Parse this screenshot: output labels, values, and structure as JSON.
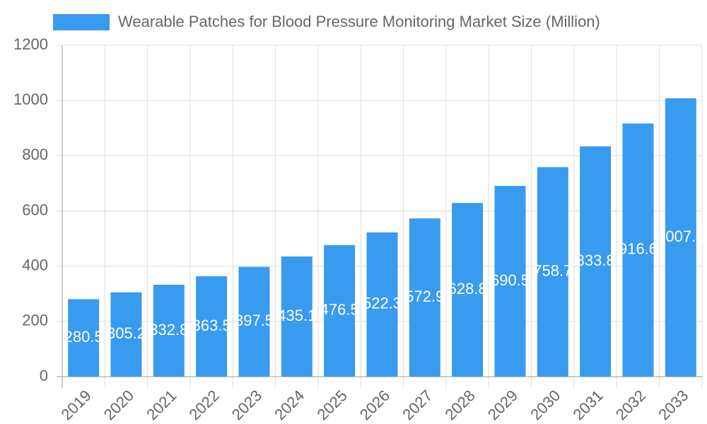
{
  "chart_data": {
    "type": "bar",
    "legend": "Wearable Patches for Blood Pressure Monitoring Market Size (Million)",
    "categories": [
      "2019",
      "2020",
      "2021",
      "2022",
      "2023",
      "2024",
      "2025",
      "2026",
      "2027",
      "2028",
      "2029",
      "2030",
      "2031",
      "2032",
      "2033"
    ],
    "values": [
      280.5,
      305.2,
      332.8,
      363.5,
      397.5,
      435.1,
      476.5,
      522.3,
      572.9,
      628.8,
      690.5,
      758.7,
      833.8,
      916.6,
      1007.8
    ],
    "color": "#389bef",
    "ylim": [
      0,
      1200
    ],
    "yticks": [
      0,
      200,
      400,
      600,
      800,
      1000,
      1200
    ],
    "grid": true
  }
}
